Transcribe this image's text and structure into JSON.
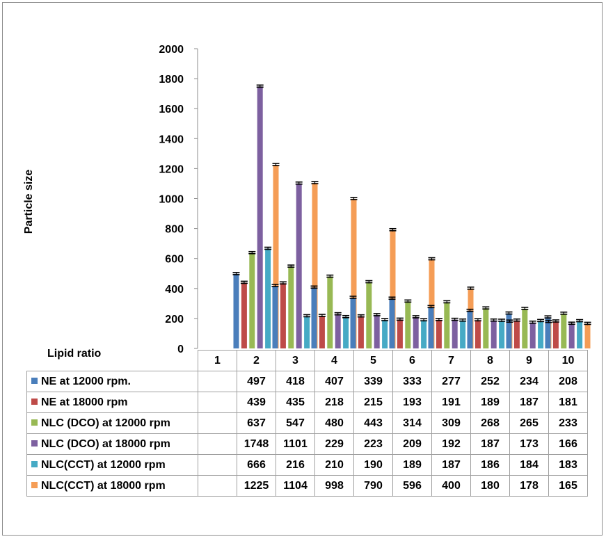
{
  "chart_data": {
    "type": "bar",
    "ylabel": "Particle size",
    "xlabel": "Lipid ratio",
    "ylim": [
      0,
      2000
    ],
    "yticks": [
      0,
      200,
      400,
      600,
      800,
      1000,
      1200,
      1400,
      1600,
      1800,
      2000
    ],
    "categories": [
      "1",
      "2",
      "3",
      "4",
      "5",
      "6",
      "7",
      "8",
      "9",
      "10"
    ],
    "error_bars": true,
    "grid": false,
    "legend": "data-table",
    "series": [
      {
        "name": "NE at 12000 rpm.",
        "color": "#4a7ebb",
        "values": [
          null,
          497,
          418,
          407,
          339,
          333,
          277,
          252,
          234,
          208
        ],
        "display": [
          "",
          "497",
          "418",
          "407",
          "339",
          "333",
          "277",
          "252",
          "234",
          "208"
        ]
      },
      {
        "name": "NE at 18000 rpm",
        "color": "#be4b48",
        "values": [
          null,
          439,
          435,
          218,
          215,
          193,
          191,
          189,
          187,
          181
        ],
        "display": [
          "",
          "439",
          "435",
          "218",
          "215",
          "193",
          "191",
          "189",
          "187",
          "181"
        ]
      },
      {
        "name": "NLC (DCO) at 12000 rpm",
        "color": "#98b954",
        "values": [
          null,
          637,
          547,
          480,
          443,
          314,
          309,
          268,
          265,
          233
        ],
        "display": [
          "",
          "637",
          "547",
          "480",
          "443",
          "314",
          "309",
          "268",
          "265",
          "233"
        ]
      },
      {
        "name": "NLC (DCO) at 18000 rpm",
        "color": "#7d60a0",
        "values": [
          null,
          1748,
          1101,
          229,
          223,
          209,
          192,
          187,
          173,
          166
        ],
        "display": [
          "",
          "1748",
          "1101",
          "229",
          "223",
          "209",
          "192",
          "187",
          "173",
          "166"
        ]
      },
      {
        "name": "NLC(CCT) at 12000 rpm",
        "color": "#46aac5",
        "values": [
          null,
          666,
          216,
          210,
          190,
          189,
          187,
          186,
          184,
          183
        ],
        "display": [
          "",
          "666",
          "216",
          "210",
          "190",
          "189",
          "187",
          "186",
          "184",
          "183"
        ]
      },
      {
        "name": "NLC(CCT) at 18000 rpm",
        "color": "#f59d56",
        "values": [
          null,
          1225,
          1104,
          998,
          790,
          596,
          400,
          180,
          178,
          165
        ],
        "display": [
          "",
          "1225",
          "1104",
          "998",
          "790",
          "596",
          "400",
          "180",
          "178",
          "165"
        ]
      }
    ]
  }
}
